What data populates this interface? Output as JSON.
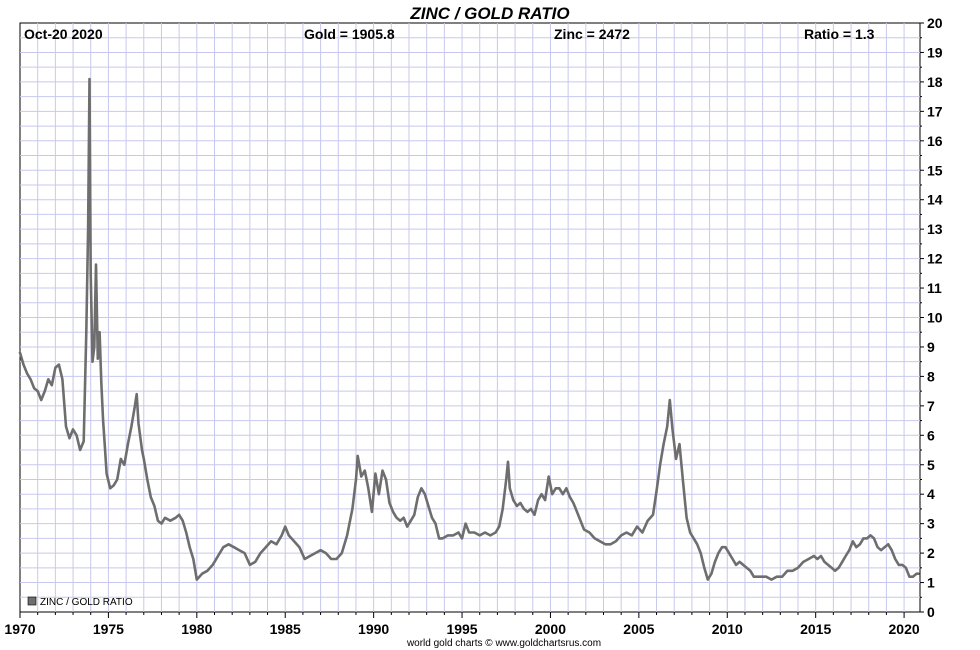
{
  "chart_data": {
    "type": "line",
    "title": "ZINC / GOLD RATIO",
    "header": {
      "date": "Oct-20  2020",
      "gold": "Gold = 1905.8",
      "zinc": "Zinc = 2472",
      "ratio": "Ratio = 1.3"
    },
    "legend": {
      "label": "ZINC / GOLD RATIO",
      "position": "bottom-left"
    },
    "credit": "world gold charts © www.goldchartsrus.com",
    "xlabel": "",
    "ylabel": "",
    "xlim": [
      1970,
      2020.9
    ],
    "ylim": [
      0,
      20
    ],
    "x_ticks": [
      "1970",
      "1975",
      "1980",
      "1985",
      "1990",
      "1995",
      "2000",
      "2005",
      "2010",
      "2015",
      "2020"
    ],
    "y_ticks": [
      "0",
      "1",
      "2",
      "3",
      "4",
      "5",
      "6",
      "7",
      "8",
      "9",
      "10",
      "11",
      "12",
      "13",
      "14",
      "15",
      "16",
      "17",
      "18",
      "19",
      "20"
    ],
    "y_axis_side": "right",
    "grid": true,
    "series_color": "#6e6e6e",
    "grid_color": "#c8c8ee",
    "title_color": "#1a1ad6",
    "series": [
      {
        "name": "ZINC / GOLD RATIO",
        "points": [
          [
            1970.0,
            8.8
          ],
          [
            1970.2,
            8.4
          ],
          [
            1970.4,
            8.1
          ],
          [
            1970.6,
            7.9
          ],
          [
            1970.8,
            7.6
          ],
          [
            1971.0,
            7.5
          ],
          [
            1971.2,
            7.2
          ],
          [
            1971.4,
            7.5
          ],
          [
            1971.6,
            7.9
          ],
          [
            1971.8,
            7.7
          ],
          [
            1972.0,
            8.3
          ],
          [
            1972.2,
            8.4
          ],
          [
            1972.4,
            7.9
          ],
          [
            1972.6,
            6.3
          ],
          [
            1972.8,
            5.9
          ],
          [
            1973.0,
            6.2
          ],
          [
            1973.2,
            6.0
          ],
          [
            1973.4,
            5.5
          ],
          [
            1973.6,
            5.8
          ],
          [
            1973.75,
            9.5
          ],
          [
            1973.85,
            13.0
          ],
          [
            1973.93,
            18.1
          ],
          [
            1974.0,
            11.5
          ],
          [
            1974.1,
            8.5
          ],
          [
            1974.2,
            9.0
          ],
          [
            1974.3,
            11.8
          ],
          [
            1974.4,
            8.6
          ],
          [
            1974.5,
            9.5
          ],
          [
            1974.6,
            7.8
          ],
          [
            1974.7,
            6.5
          ],
          [
            1974.8,
            5.6
          ],
          [
            1974.9,
            4.7
          ],
          [
            1975.1,
            4.2
          ],
          [
            1975.3,
            4.3
          ],
          [
            1975.5,
            4.5
          ],
          [
            1975.7,
            5.2
          ],
          [
            1975.9,
            5.0
          ],
          [
            1976.1,
            5.7
          ],
          [
            1976.3,
            6.3
          ],
          [
            1976.5,
            7.0
          ],
          [
            1976.6,
            7.4
          ],
          [
            1976.7,
            6.4
          ],
          [
            1976.9,
            5.5
          ],
          [
            1977.0,
            5.2
          ],
          [
            1977.2,
            4.5
          ],
          [
            1977.4,
            3.9
          ],
          [
            1977.6,
            3.6
          ],
          [
            1977.8,
            3.1
          ],
          [
            1978.0,
            3.0
          ],
          [
            1978.2,
            3.2
          ],
          [
            1978.5,
            3.1
          ],
          [
            1978.8,
            3.2
          ],
          [
            1979.0,
            3.3
          ],
          [
            1979.2,
            3.1
          ],
          [
            1979.4,
            2.7
          ],
          [
            1979.6,
            2.2
          ],
          [
            1979.8,
            1.8
          ],
          [
            1980.0,
            1.1
          ],
          [
            1980.3,
            1.3
          ],
          [
            1980.6,
            1.4
          ],
          [
            1980.9,
            1.6
          ],
          [
            1981.2,
            1.9
          ],
          [
            1981.5,
            2.2
          ],
          [
            1981.8,
            2.3
          ],
          [
            1982.1,
            2.2
          ],
          [
            1982.4,
            2.1
          ],
          [
            1982.7,
            2.0
          ],
          [
            1983.0,
            1.6
          ],
          [
            1983.3,
            1.7
          ],
          [
            1983.6,
            2.0
          ],
          [
            1983.9,
            2.2
          ],
          [
            1984.2,
            2.4
          ],
          [
            1984.5,
            2.3
          ],
          [
            1984.8,
            2.6
          ],
          [
            1985.0,
            2.9
          ],
          [
            1985.2,
            2.6
          ],
          [
            1985.5,
            2.4
          ],
          [
            1985.8,
            2.2
          ],
          [
            1986.1,
            1.8
          ],
          [
            1986.4,
            1.9
          ],
          [
            1986.7,
            2.0
          ],
          [
            1987.0,
            2.1
          ],
          [
            1987.3,
            2.0
          ],
          [
            1987.6,
            1.8
          ],
          [
            1987.9,
            1.8
          ],
          [
            1988.2,
            2.0
          ],
          [
            1988.5,
            2.6
          ],
          [
            1988.8,
            3.5
          ],
          [
            1989.0,
            4.5
          ],
          [
            1989.1,
            5.3
          ],
          [
            1989.3,
            4.6
          ],
          [
            1989.5,
            4.8
          ],
          [
            1989.7,
            4.2
          ],
          [
            1989.9,
            3.4
          ],
          [
            1990.1,
            4.7
          ],
          [
            1990.3,
            4.0
          ],
          [
            1990.5,
            4.8
          ],
          [
            1990.7,
            4.5
          ],
          [
            1990.9,
            3.7
          ],
          [
            1991.1,
            3.4
          ],
          [
            1991.3,
            3.2
          ],
          [
            1991.5,
            3.1
          ],
          [
            1991.7,
            3.2
          ],
          [
            1991.9,
            2.9
          ],
          [
            1992.1,
            3.1
          ],
          [
            1992.3,
            3.3
          ],
          [
            1992.5,
            3.9
          ],
          [
            1992.7,
            4.2
          ],
          [
            1992.9,
            4.0
          ],
          [
            1993.1,
            3.6
          ],
          [
            1993.3,
            3.2
          ],
          [
            1993.5,
            3.0
          ],
          [
            1993.7,
            2.5
          ],
          [
            1993.9,
            2.5
          ],
          [
            1994.2,
            2.6
          ],
          [
            1994.5,
            2.6
          ],
          [
            1994.8,
            2.7
          ],
          [
            1995.0,
            2.5
          ],
          [
            1995.2,
            3.0
          ],
          [
            1995.4,
            2.7
          ],
          [
            1995.7,
            2.7
          ],
          [
            1996.0,
            2.6
          ],
          [
            1996.3,
            2.7
          ],
          [
            1996.6,
            2.6
          ],
          [
            1996.9,
            2.7
          ],
          [
            1997.1,
            2.9
          ],
          [
            1997.3,
            3.5
          ],
          [
            1997.5,
            4.5
          ],
          [
            1997.6,
            5.1
          ],
          [
            1997.7,
            4.2
          ],
          [
            1997.9,
            3.8
          ],
          [
            1998.1,
            3.6
          ],
          [
            1998.3,
            3.7
          ],
          [
            1998.5,
            3.5
          ],
          [
            1998.7,
            3.4
          ],
          [
            1998.9,
            3.5
          ],
          [
            1999.1,
            3.3
          ],
          [
            1999.3,
            3.8
          ],
          [
            1999.5,
            4.0
          ],
          [
            1999.7,
            3.8
          ],
          [
            1999.9,
            4.6
          ],
          [
            2000.1,
            4.0
          ],
          [
            2000.3,
            4.2
          ],
          [
            2000.5,
            4.2
          ],
          [
            2000.7,
            4.0
          ],
          [
            2000.9,
            4.2
          ],
          [
            2001.1,
            3.9
          ],
          [
            2001.3,
            3.7
          ],
          [
            2001.5,
            3.4
          ],
          [
            2001.7,
            3.1
          ],
          [
            2001.9,
            2.8
          ],
          [
            2002.2,
            2.7
          ],
          [
            2002.5,
            2.5
          ],
          [
            2002.8,
            2.4
          ],
          [
            2003.1,
            2.3
          ],
          [
            2003.4,
            2.3
          ],
          [
            2003.7,
            2.4
          ],
          [
            2004.0,
            2.6
          ],
          [
            2004.3,
            2.7
          ],
          [
            2004.6,
            2.6
          ],
          [
            2004.9,
            2.9
          ],
          [
            2005.2,
            2.7
          ],
          [
            2005.5,
            3.1
          ],
          [
            2005.8,
            3.3
          ],
          [
            2006.0,
            4.1
          ],
          [
            2006.2,
            5.0
          ],
          [
            2006.4,
            5.7
          ],
          [
            2006.6,
            6.3
          ],
          [
            2006.75,
            7.2
          ],
          [
            2006.9,
            6.2
          ],
          [
            2007.1,
            5.2
          ],
          [
            2007.3,
            5.7
          ],
          [
            2007.5,
            4.4
          ],
          [
            2007.7,
            3.2
          ],
          [
            2007.9,
            2.7
          ],
          [
            2008.1,
            2.5
          ],
          [
            2008.3,
            2.3
          ],
          [
            2008.5,
            2.0
          ],
          [
            2008.7,
            1.5
          ],
          [
            2008.9,
            1.1
          ],
          [
            2009.1,
            1.3
          ],
          [
            2009.3,
            1.7
          ],
          [
            2009.5,
            2.0
          ],
          [
            2009.7,
            2.2
          ],
          [
            2009.9,
            2.2
          ],
          [
            2010.1,
            2.0
          ],
          [
            2010.3,
            1.8
          ],
          [
            2010.5,
            1.6
          ],
          [
            2010.7,
            1.7
          ],
          [
            2010.9,
            1.6
          ],
          [
            2011.1,
            1.5
          ],
          [
            2011.3,
            1.4
          ],
          [
            2011.5,
            1.2
          ],
          [
            2011.7,
            1.2
          ],
          [
            2011.9,
            1.2
          ],
          [
            2012.2,
            1.2
          ],
          [
            2012.5,
            1.1
          ],
          [
            2012.8,
            1.2
          ],
          [
            2013.1,
            1.2
          ],
          [
            2013.4,
            1.4
          ],
          [
            2013.7,
            1.4
          ],
          [
            2014.0,
            1.5
          ],
          [
            2014.3,
            1.7
          ],
          [
            2014.6,
            1.8
          ],
          [
            2014.9,
            1.9
          ],
          [
            2015.1,
            1.8
          ],
          [
            2015.3,
            1.9
          ],
          [
            2015.5,
            1.7
          ],
          [
            2015.7,
            1.6
          ],
          [
            2015.9,
            1.5
          ],
          [
            2016.1,
            1.4
          ],
          [
            2016.3,
            1.5
          ],
          [
            2016.5,
            1.7
          ],
          [
            2016.7,
            1.9
          ],
          [
            2016.9,
            2.1
          ],
          [
            2017.1,
            2.4
          ],
          [
            2017.3,
            2.2
          ],
          [
            2017.5,
            2.3
          ],
          [
            2017.7,
            2.5
          ],
          [
            2017.9,
            2.5
          ],
          [
            2018.1,
            2.6
          ],
          [
            2018.3,
            2.5
          ],
          [
            2018.5,
            2.2
          ],
          [
            2018.7,
            2.1
          ],
          [
            2018.9,
            2.2
          ],
          [
            2019.1,
            2.3
          ],
          [
            2019.3,
            2.1
          ],
          [
            2019.5,
            1.8
          ],
          [
            2019.7,
            1.6
          ],
          [
            2019.9,
            1.6
          ],
          [
            2020.1,
            1.5
          ],
          [
            2020.3,
            1.2
          ],
          [
            2020.5,
            1.2
          ],
          [
            2020.7,
            1.3
          ],
          [
            2020.8,
            1.3
          ]
        ]
      }
    ]
  }
}
